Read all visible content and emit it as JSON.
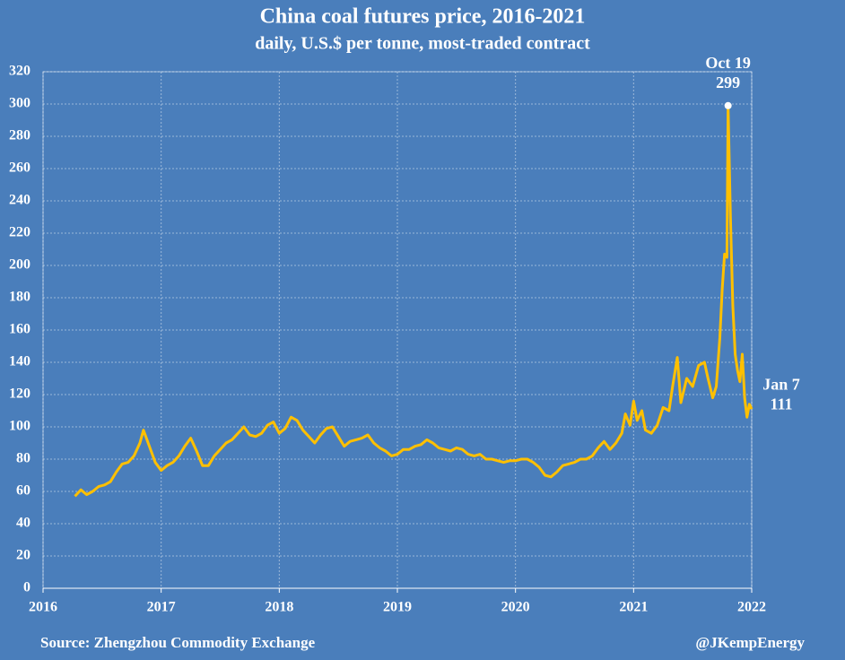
{
  "chart_data": {
    "type": "line",
    "title": "China coal futures price, 2016-2021",
    "subtitle": "daily, U.S.$ per tonne, most-traded contract",
    "source": "Source: Zhengzhou Commodity Exchange",
    "credit": "@JKempEnergy",
    "x": [
      2016.27,
      2016.32,
      2016.37,
      2016.42,
      2016.47,
      2016.52,
      2016.57,
      2016.62,
      2016.67,
      2016.72,
      2016.77,
      2016.82,
      2016.85,
      2016.9,
      2016.95,
      2017.0,
      2017.05,
      2017.1,
      2017.15,
      2017.2,
      2017.25,
      2017.3,
      2017.35,
      2017.4,
      2017.45,
      2017.5,
      2017.55,
      2017.6,
      2017.65,
      2017.7,
      2017.75,
      2017.8,
      2017.85,
      2017.9,
      2017.95,
      2018.0,
      2018.05,
      2018.1,
      2018.15,
      2018.2,
      2018.25,
      2018.3,
      2018.35,
      2018.4,
      2018.45,
      2018.5,
      2018.55,
      2018.6,
      2018.65,
      2018.7,
      2018.75,
      2018.8,
      2018.85,
      2018.9,
      2018.95,
      2019.0,
      2019.05,
      2019.1,
      2019.15,
      2019.2,
      2019.25,
      2019.3,
      2019.35,
      2019.4,
      2019.45,
      2019.5,
      2019.55,
      2019.6,
      2019.65,
      2019.7,
      2019.75,
      2019.8,
      2019.85,
      2019.9,
      2019.95,
      2020.0,
      2020.05,
      2020.1,
      2020.15,
      2020.2,
      2020.25,
      2020.3,
      2020.35,
      2020.4,
      2020.45,
      2020.5,
      2020.55,
      2020.6,
      2020.65,
      2020.7,
      2020.75,
      2020.8,
      2020.85,
      2020.9,
      2020.93,
      2020.97,
      2021.0,
      2021.03,
      2021.07,
      2021.1,
      2021.15,
      2021.2,
      2021.25,
      2021.3,
      2021.33,
      2021.37,
      2021.4,
      2021.45,
      2021.5,
      2021.55,
      2021.6,
      2021.63,
      2021.67,
      2021.7,
      2021.73,
      2021.75,
      2021.77,
      2021.79,
      2021.8,
      2021.82,
      2021.84,
      2021.86,
      2021.88,
      2021.9,
      2021.92,
      2021.94,
      2021.96,
      2021.98,
      2022.0
    ],
    "series": [
      {
        "color": "#ffc000",
        "values": [
          57,
          61,
          58,
          60,
          63,
          64,
          66,
          72,
          77,
          78,
          82,
          90,
          98,
          88,
          78,
          73,
          76,
          78,
          82,
          88,
          93,
          85,
          76,
          76,
          82,
          86,
          90,
          92,
          96,
          100,
          95,
          94,
          96,
          101,
          103,
          96,
          99,
          106,
          104,
          98,
          94,
          90,
          95,
          99,
          100,
          94,
          88,
          91,
          92,
          93,
          95,
          90,
          87,
          85,
          82,
          83,
          86,
          86,
          88,
          89,
          92,
          90,
          87,
          86,
          85,
          87,
          86,
          83,
          82,
          83,
          80,
          80,
          79,
          78,
          79,
          79,
          80,
          80,
          78,
          75,
          70,
          69,
          72,
          76,
          77,
          78,
          80,
          80,
          82,
          87,
          91,
          86,
          90,
          96,
          108,
          101,
          116,
          104,
          110,
          98,
          96,
          101,
          112,
          110,
          125,
          143,
          115,
          130,
          125,
          138,
          140,
          130,
          118,
          125,
          155,
          185,
          207,
          205,
          299,
          230,
          175,
          145,
          135,
          128,
          145,
          118,
          106,
          114,
          111
        ]
      }
    ],
    "annotations": [
      {
        "label": "Oct 19",
        "value": 299,
        "x": 2021.8
      },
      {
        "label": "Jan 7",
        "value": 111,
        "x": 2022.0
      }
    ],
    "xlim": [
      2016,
      2022
    ],
    "xticks": [
      2016,
      2017,
      2018,
      2019,
      2020,
      2021,
      2022
    ],
    "ylim": [
      0,
      320
    ],
    "yticks": [
      0,
      20,
      40,
      60,
      80,
      100,
      120,
      140,
      160,
      180,
      200,
      220,
      240,
      260,
      280,
      300,
      320
    ],
    "grid": true
  }
}
